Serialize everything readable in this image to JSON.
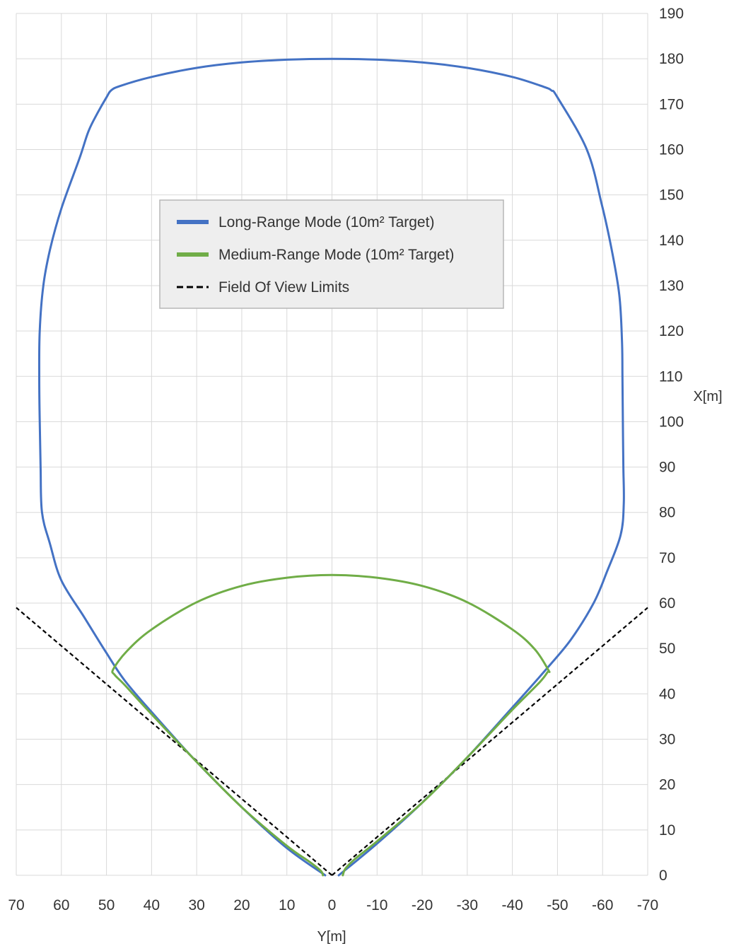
{
  "chart_data": {
    "type": "line",
    "title": "",
    "xlabel": "Y[m]",
    "ylabel": "X[m]",
    "x_axis": {
      "min": 70,
      "max": -70,
      "step": 10,
      "reversed": true,
      "position": "bottom"
    },
    "y_axis": {
      "min": 0,
      "max": 190,
      "step": 10,
      "position": "right"
    },
    "grid": true,
    "legend": {
      "placement": "upper-center",
      "entries": [
        {
          "label": "Long-Range Mode (10m² Target)",
          "color": "#4472C4",
          "style": "solid"
        },
        {
          "label": "Medium-Range Mode (10m² Target)",
          "color": "#70AD47",
          "style": "solid"
        },
        {
          "label": "Field Of View Limits",
          "color": "#000000",
          "style": "dashed"
        }
      ]
    },
    "series": [
      {
        "name": "Long-Range Mode (10m² Target)",
        "color": "#4472C4",
        "style": "solid",
        "points": [
          [
            -1.5,
            0
          ],
          [
            -10,
            7
          ],
          [
            -20,
            16
          ],
          [
            -30,
            26
          ],
          [
            -40,
            37
          ],
          [
            -48,
            46
          ],
          [
            -53,
            52
          ],
          [
            -58,
            60
          ],
          [
            -61,
            67
          ],
          [
            -64,
            75
          ],
          [
            -64.7,
            82
          ],
          [
            -64.6,
            90
          ],
          [
            -64.5,
            100
          ],
          [
            -64.4,
            110
          ],
          [
            -64.3,
            118
          ],
          [
            -63.7,
            128
          ],
          [
            -62,
            138
          ],
          [
            -59.8,
            148
          ],
          [
            -56.5,
            160
          ],
          [
            -50,
            171.5
          ],
          [
            -48.7,
            173
          ],
          [
            -47,
            173.8
          ],
          [
            -40,
            176
          ],
          [
            -30,
            178
          ],
          [
            -20,
            179.2
          ],
          [
            -10,
            179.8
          ],
          [
            0,
            180
          ],
          [
            10,
            179.8
          ],
          [
            20,
            179.2
          ],
          [
            30,
            178
          ],
          [
            40,
            176
          ],
          [
            47,
            174
          ],
          [
            49,
            173
          ],
          [
            50,
            171.5
          ],
          [
            52,
            168
          ],
          [
            54,
            164
          ],
          [
            56,
            158
          ],
          [
            60,
            147
          ],
          [
            62.5,
            138
          ],
          [
            64,
            130
          ],
          [
            64.8,
            120
          ],
          [
            64.9,
            110
          ],
          [
            64.8,
            100
          ],
          [
            64.6,
            90
          ],
          [
            64.3,
            80
          ],
          [
            62.5,
            73
          ],
          [
            60,
            65
          ],
          [
            55,
            57
          ],
          [
            50,
            49
          ],
          [
            46,
            43
          ],
          [
            40,
            36
          ],
          [
            30,
            25
          ],
          [
            20,
            15
          ],
          [
            10,
            6
          ],
          [
            1.5,
            0
          ]
        ]
      },
      {
        "name": "Medium-Range Mode (10m² Target)",
        "color": "#70AD47",
        "style": "solid",
        "points": [
          [
            -2.4,
            0
          ],
          [
            -3,
            1.5
          ],
          [
            -5,
            3.5
          ],
          [
            -10,
            7.5
          ],
          [
            -20,
            16
          ],
          [
            -30,
            26
          ],
          [
            -40,
            36.5
          ],
          [
            -46,
            42.5
          ],
          [
            -47.8,
            44.8
          ],
          [
            -48,
            45.2
          ],
          [
            -45,
            49.8
          ],
          [
            -40,
            54.2
          ],
          [
            -30,
            60.2
          ],
          [
            -20,
            63.8
          ],
          [
            -10,
            65.6
          ],
          [
            0,
            66.2
          ],
          [
            10,
            65.6
          ],
          [
            20,
            63.8
          ],
          [
            30,
            60.2
          ],
          [
            40,
            54.2
          ],
          [
            45.5,
            49.4
          ],
          [
            48.5,
            45.4
          ],
          [
            48.2,
            44.2
          ],
          [
            46,
            42
          ],
          [
            40,
            35.5
          ],
          [
            30,
            25
          ],
          [
            20,
            15
          ],
          [
            10,
            6.5
          ],
          [
            5,
            3
          ],
          [
            2.5,
            1
          ],
          [
            2,
            0
          ]
        ]
      },
      {
        "name": "Field Of View Limits",
        "color": "#000000",
        "style": "dashed",
        "segments": [
          [
            [
              0,
              0
            ],
            [
              70,
              59
            ]
          ],
          [
            [
              0,
              0
            ],
            [
              -70,
              59
            ]
          ]
        ]
      }
    ]
  }
}
